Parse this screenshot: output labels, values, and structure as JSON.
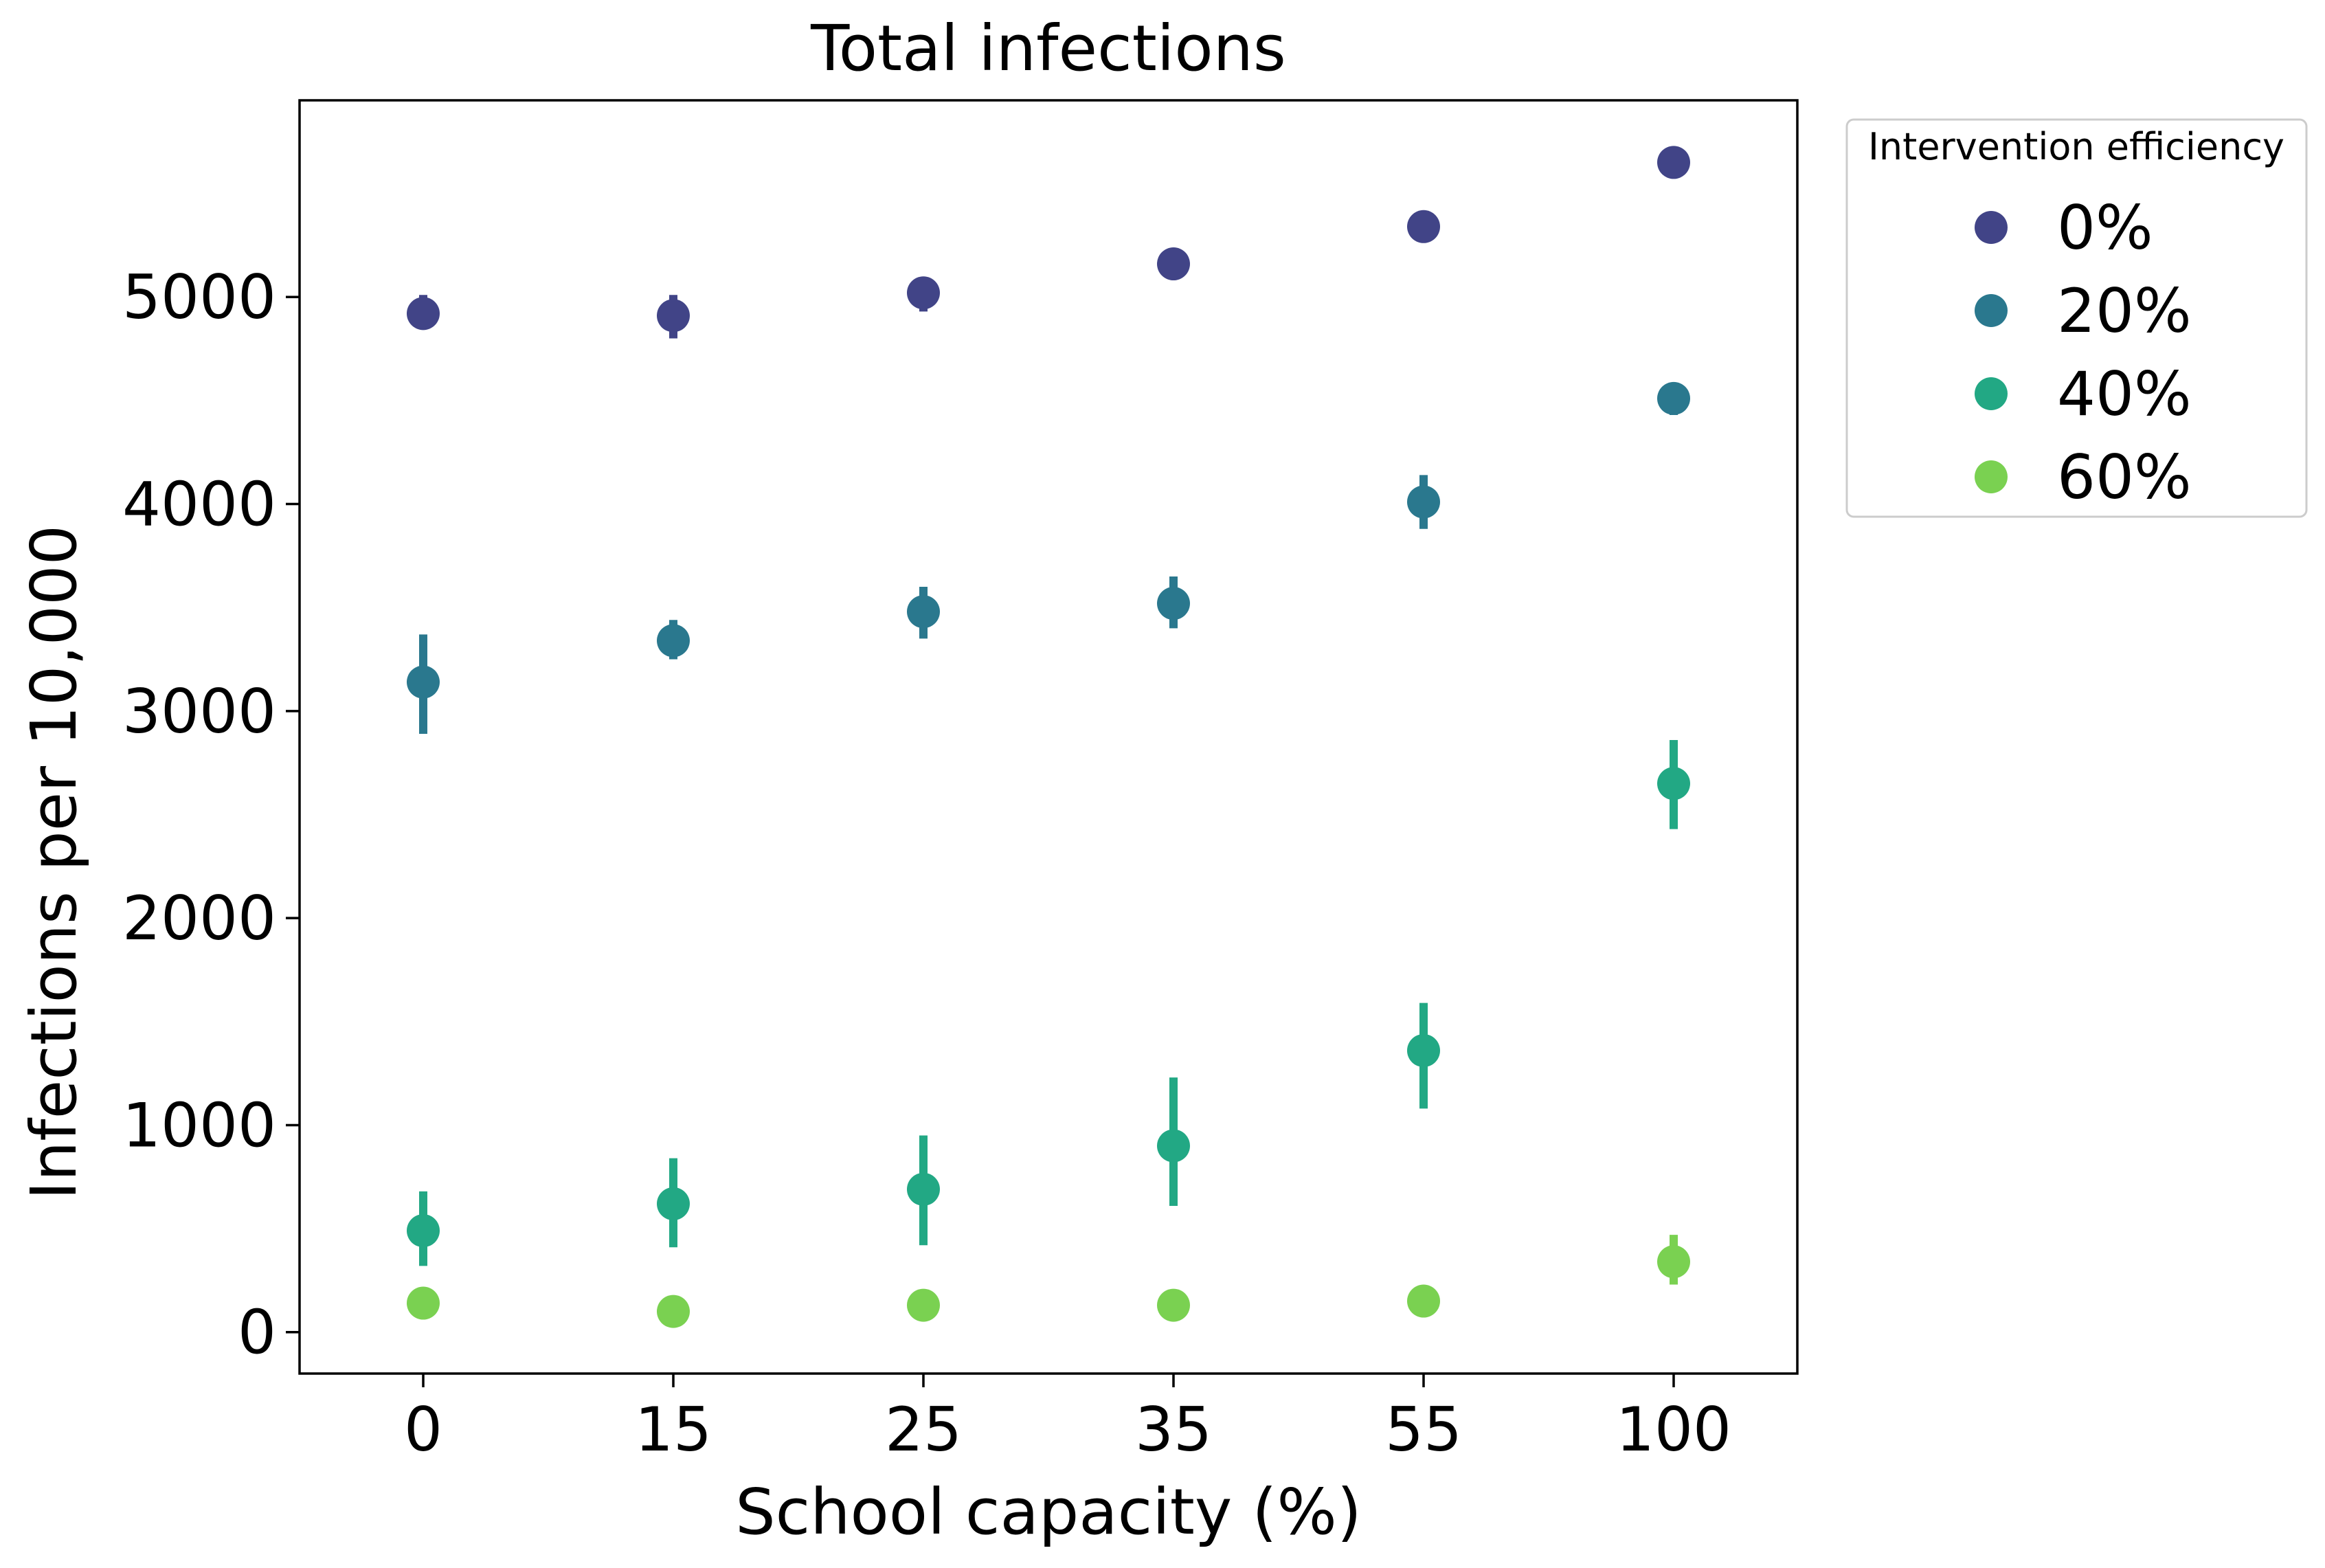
{
  "chart_data": {
    "type": "scatter",
    "title": "Total infections",
    "xlabel": "School capacity (%)",
    "ylabel": "Infections per 10,000",
    "categories": [
      "0",
      "15",
      "25",
      "35",
      "55",
      "100"
    ],
    "yticks": [
      0,
      1000,
      2000,
      3000,
      4000,
      5000
    ],
    "ylim": [
      -200,
      5950
    ],
    "grid": false,
    "legend": {
      "title": "Intervention efficiency",
      "placement": "outside upper right",
      "entries": [
        "0%",
        "20%",
        "40%",
        "60%"
      ]
    },
    "series": [
      {
        "name": "0%",
        "color": "#414487",
        "values": [
          4920,
          4910,
          5020,
          5160,
          5340,
          5650
        ],
        "err_low": [
          4880,
          4800,
          4930,
          5130,
          5310,
          5620
        ],
        "err_high": [
          5010,
          5010,
          5090,
          5190,
          5370,
          5680
        ]
      },
      {
        "name": "20%",
        "color": "#2a788e",
        "values": [
          3140,
          3340,
          3480,
          3520,
          4010,
          4510
        ],
        "err_low": [
          2890,
          3250,
          3350,
          3400,
          3880,
          4430
        ],
        "err_high": [
          3370,
          3440,
          3600,
          3650,
          4140,
          4560
        ]
      },
      {
        "name": "40%",
        "color": "#22a884",
        "values": [
          490,
          620,
          690,
          900,
          1360,
          2650
        ],
        "err_low": [
          320,
          410,
          420,
          610,
          1080,
          2430
        ],
        "err_high": [
          680,
          840,
          950,
          1230,
          1590,
          2860
        ]
      },
      {
        "name": "60%",
        "color": "#7ad151",
        "values": [
          140,
          100,
          130,
          130,
          150,
          340
        ],
        "err_low": [
          120,
          80,
          110,
          110,
          130,
          230
        ],
        "err_high": [
          160,
          120,
          150,
          150,
          170,
          470
        ]
      }
    ]
  }
}
